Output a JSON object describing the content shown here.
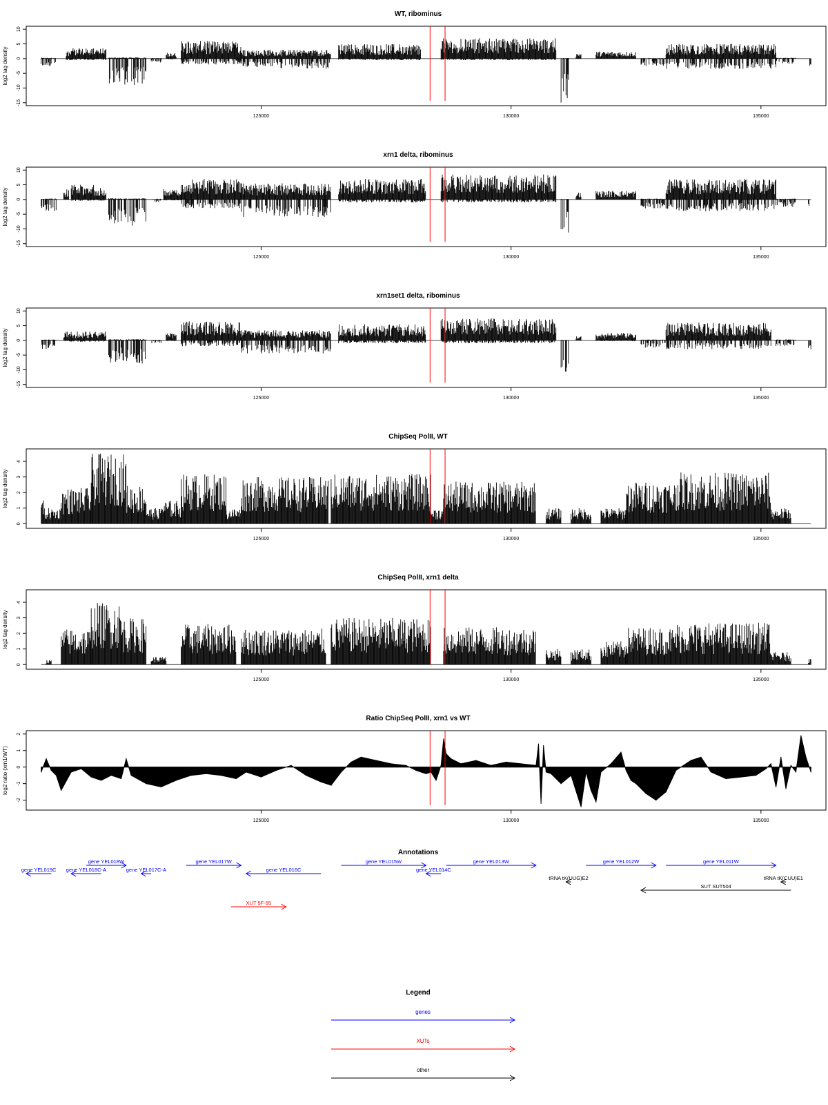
{
  "chart_data": [
    {
      "type": "bar",
      "title": "WT, ribominus",
      "ylabel": "log2 tag density",
      "xlabel": "",
      "xlim": [
        120300,
        136300
      ],
      "ylim": [
        -16,
        11
      ],
      "yticks": [
        -15,
        -10,
        -5,
        0,
        5,
        10
      ],
      "xticks": [
        125000,
        130000,
        135000
      ],
      "marker_lines": [
        128380,
        128680
      ],
      "profile": [
        {
          "start": 120600,
          "end": 120900,
          "pos": 0.3,
          "neg": -2.5
        },
        {
          "start": 121100,
          "end": 121900,
          "pos": 3.5,
          "neg": -0.5
        },
        {
          "start": 121950,
          "end": 122700,
          "pos": 0.4,
          "neg": -9
        },
        {
          "start": 122800,
          "end": 123000,
          "pos": 0.2,
          "neg": -1.5
        },
        {
          "start": 123100,
          "end": 123300,
          "pos": 2.0,
          "neg": -0.3
        },
        {
          "start": 123400,
          "end": 124600,
          "pos": 6.0,
          "neg": -2.0
        },
        {
          "start": 124600,
          "end": 126400,
          "pos": 3.0,
          "neg": -3.5
        },
        {
          "start": 126550,
          "end": 128200,
          "pos": 5.0,
          "neg": -0.5
        },
        {
          "start": 128600,
          "end": 130900,
          "pos": 7.0,
          "neg": -0.5
        },
        {
          "start": 131000,
          "end": 131150,
          "pos": 0.2,
          "neg": -15
        },
        {
          "start": 131300,
          "end": 131400,
          "pos": 2.0,
          "neg": 0
        },
        {
          "start": 131700,
          "end": 132500,
          "pos": 2.5,
          "neg": 0
        },
        {
          "start": 132600,
          "end": 133100,
          "pos": 0.2,
          "neg": -2.5
        },
        {
          "start": 133100,
          "end": 135300,
          "pos": 5.0,
          "neg": -3.5
        },
        {
          "start": 135300,
          "end": 135700,
          "pos": 0.3,
          "neg": -2.0
        },
        {
          "start": 135950,
          "end": 136000,
          "pos": 0.1,
          "neg": -2.5
        }
      ]
    },
    {
      "type": "bar",
      "title": "xrn1 delta, ribominus",
      "ylabel": "log2 tag density",
      "xlabel": "",
      "xlim": [
        120300,
        136300
      ],
      "ylim": [
        -16,
        11
      ],
      "yticks": [
        -15,
        -10,
        -5,
        0,
        5,
        10
      ],
      "xticks": [
        125000,
        130000,
        135000
      ],
      "marker_lines": [
        128380,
        128680
      ],
      "profile": [
        {
          "start": 120600,
          "end": 120900,
          "pos": 0.3,
          "neg": -4
        },
        {
          "start": 121050,
          "end": 121150,
          "pos": 3.5,
          "neg": 0
        },
        {
          "start": 121200,
          "end": 121900,
          "pos": 5.0,
          "neg": -0.5
        },
        {
          "start": 121950,
          "end": 122700,
          "pos": 0.4,
          "neg": -9
        },
        {
          "start": 122800,
          "end": 123000,
          "pos": 0.3,
          "neg": -1.0
        },
        {
          "start": 123050,
          "end": 123400,
          "pos": 3.5,
          "neg": -0.3
        },
        {
          "start": 123400,
          "end": 124600,
          "pos": 7.0,
          "neg": -3.0
        },
        {
          "start": 124600,
          "end": 126400,
          "pos": 5.5,
          "neg": -6.0
        },
        {
          "start": 126550,
          "end": 128300,
          "pos": 7.0,
          "neg": -1.0
        },
        {
          "start": 128600,
          "end": 130900,
          "pos": 8.5,
          "neg": -1.0
        },
        {
          "start": 131000,
          "end": 131150,
          "pos": 0.2,
          "neg": -12
        },
        {
          "start": 131300,
          "end": 131400,
          "pos": 2.5,
          "neg": 0
        },
        {
          "start": 131700,
          "end": 132500,
          "pos": 3.0,
          "neg": 0
        },
        {
          "start": 132600,
          "end": 133100,
          "pos": 0.3,
          "neg": -3.0
        },
        {
          "start": 133100,
          "end": 135300,
          "pos": 7.0,
          "neg": -4.0
        },
        {
          "start": 135300,
          "end": 135700,
          "pos": 0.3,
          "neg": -2.5
        },
        {
          "start": 135950,
          "end": 136000,
          "pos": 0.1,
          "neg": -2.5
        }
      ]
    },
    {
      "type": "bar",
      "title": "xrn1set1 delta, ribominus",
      "ylabel": "log2 tag density",
      "xlabel": "",
      "xlim": [
        120300,
        136300
      ],
      "ylim": [
        -16,
        11
      ],
      "yticks": [
        -15,
        -10,
        -5,
        0,
        5,
        10
      ],
      "xticks": [
        125000,
        130000,
        135000
      ],
      "marker_lines": [
        128380,
        128680
      ],
      "profile": [
        {
          "start": 120600,
          "end": 120900,
          "pos": 0.3,
          "neg": -3
        },
        {
          "start": 121050,
          "end": 121900,
          "pos": 3.0,
          "neg": -0.5
        },
        {
          "start": 121950,
          "end": 122700,
          "pos": 0.4,
          "neg": -8
        },
        {
          "start": 122800,
          "end": 123000,
          "pos": 0.2,
          "neg": -1.0
        },
        {
          "start": 123100,
          "end": 123300,
          "pos": 2.5,
          "neg": -0.3
        },
        {
          "start": 123400,
          "end": 124600,
          "pos": 6.5,
          "neg": -2.0
        },
        {
          "start": 124600,
          "end": 126400,
          "pos": 3.5,
          "neg": -4.5
        },
        {
          "start": 126550,
          "end": 128300,
          "pos": 5.5,
          "neg": -1.0
        },
        {
          "start": 128600,
          "end": 130900,
          "pos": 7.5,
          "neg": -1.0
        },
        {
          "start": 131000,
          "end": 131150,
          "pos": 0.2,
          "neg": -11
        },
        {
          "start": 131300,
          "end": 131400,
          "pos": 1.5,
          "neg": 0
        },
        {
          "start": 131700,
          "end": 132500,
          "pos": 2.5,
          "neg": -0.3
        },
        {
          "start": 132600,
          "end": 133100,
          "pos": 0.3,
          "neg": -2.5
        },
        {
          "start": 133100,
          "end": 135200,
          "pos": 6.0,
          "neg": -3.0
        },
        {
          "start": 135300,
          "end": 135700,
          "pos": 0.3,
          "neg": -2.0
        },
        {
          "start": 135950,
          "end": 136000,
          "pos": 0.1,
          "neg": -3.0
        }
      ]
    },
    {
      "type": "bar",
      "title": "ChipSeq PolII, WT",
      "ylabel": "log2 tag density",
      "xlabel": "",
      "xlim": [
        120300,
        136300
      ],
      "ylim": [
        -0.3,
        4.8
      ],
      "yticks": [
        0,
        1,
        2,
        3,
        4
      ],
      "xticks": [
        125000,
        130000,
        135000
      ],
      "marker_lines": [
        128380,
        128680
      ],
      "profile": [
        {
          "start": 120600,
          "end": 120650,
          "pos": 1.6
        },
        {
          "start": 120650,
          "end": 121000,
          "pos": 1.0
        },
        {
          "start": 121000,
          "end": 121600,
          "pos": 2.3
        },
        {
          "start": 121600,
          "end": 122300,
          "pos": 4.5
        },
        {
          "start": 122300,
          "end": 122700,
          "pos": 2.5
        },
        {
          "start": 122700,
          "end": 123000,
          "pos": 1.0
        },
        {
          "start": 123000,
          "end": 123400,
          "pos": 1.5
        },
        {
          "start": 123400,
          "end": 124300,
          "pos": 3.2
        },
        {
          "start": 124300,
          "end": 124600,
          "pos": 1.0
        },
        {
          "start": 124600,
          "end": 126350,
          "pos": 3.0
        },
        {
          "start": 126400,
          "end": 128400,
          "pos": 3.2
        },
        {
          "start": 128400,
          "end": 128650,
          "pos": 1.0
        },
        {
          "start": 128650,
          "end": 130500,
          "pos": 2.7
        },
        {
          "start": 130700,
          "end": 131000,
          "pos": 1.0
        },
        {
          "start": 131200,
          "end": 131600,
          "pos": 1.0
        },
        {
          "start": 131800,
          "end": 132300,
          "pos": 1.0
        },
        {
          "start": 132300,
          "end": 133300,
          "pos": 2.7
        },
        {
          "start": 133300,
          "end": 135200,
          "pos": 3.3
        },
        {
          "start": 135200,
          "end": 135600,
          "pos": 1.0
        }
      ]
    },
    {
      "type": "bar",
      "title": "ChipSeq PolII, xrn1 delta",
      "ylabel": "log2 tag density",
      "xlabel": "",
      "xlim": [
        120300,
        136300
      ],
      "ylim": [
        -0.3,
        4.8
      ],
      "yticks": [
        0,
        1,
        2,
        3,
        4
      ],
      "xticks": [
        125000,
        130000,
        135000
      ],
      "marker_lines": [
        128380,
        128680
      ],
      "profile": [
        {
          "start": 120700,
          "end": 120800,
          "pos": 0.3
        },
        {
          "start": 121000,
          "end": 121600,
          "pos": 2.3
        },
        {
          "start": 121600,
          "end": 122200,
          "pos": 4.0
        },
        {
          "start": 122200,
          "end": 122700,
          "pos": 3.0
        },
        {
          "start": 122800,
          "end": 123100,
          "pos": 0.5
        },
        {
          "start": 123400,
          "end": 124500,
          "pos": 2.6
        },
        {
          "start": 124600,
          "end": 126300,
          "pos": 2.3
        },
        {
          "start": 126400,
          "end": 128400,
          "pos": 3.0
        },
        {
          "start": 128650,
          "end": 130500,
          "pos": 2.4
        },
        {
          "start": 130700,
          "end": 131000,
          "pos": 1.0
        },
        {
          "start": 131200,
          "end": 131600,
          "pos": 1.0
        },
        {
          "start": 131800,
          "end": 132300,
          "pos": 1.5
        },
        {
          "start": 132300,
          "end": 133300,
          "pos": 2.4
        },
        {
          "start": 133300,
          "end": 135200,
          "pos": 2.7
        },
        {
          "start": 135200,
          "end": 135600,
          "pos": 0.8
        },
        {
          "start": 135950,
          "end": 136000,
          "pos": 0.4
        }
      ]
    },
    {
      "type": "area",
      "title": "Ratio ChipSeq PolII, xrn1 vs WT",
      "ylabel": "log2 ratio (xrn1/WT)",
      "xlabel": "",
      "xlim": [
        120300,
        136300
      ],
      "ylim": [
        -2.6,
        2.2
      ],
      "yticks": [
        -2,
        -1,
        0,
        1,
        2
      ],
      "xticks": [
        125000,
        130000,
        135000
      ],
      "marker_lines": [
        128380,
        128680
      ],
      "x": [
        120600,
        120700,
        120800,
        120900,
        121000,
        121200,
        121400,
        121600,
        121800,
        122000,
        122200,
        122300,
        122400,
        122700,
        123000,
        123300,
        123600,
        123900,
        124200,
        124500,
        124700,
        125000,
        125300,
        125600,
        125900,
        126200,
        126400,
        126600,
        126800,
        127000,
        127300,
        127600,
        127900,
        128100,
        128300,
        128400,
        128500,
        128600,
        128650,
        128700,
        128800,
        129000,
        129300,
        129600,
        129900,
        130200,
        130500,
        130550,
        130600,
        130650,
        130700,
        130800,
        131000,
        131200,
        131400,
        131500,
        131600,
        131700,
        131800,
        132000,
        132200,
        132300,
        132400,
        132500,
        132700,
        132900,
        133100,
        133300,
        133600,
        133800,
        134000,
        134300,
        134600,
        134900,
        135100,
        135200,
        135300,
        135400,
        135500,
        135600,
        135700,
        135800,
        135900,
        136000
      ],
      "y": [
        -0.3,
        0.5,
        -0.2,
        -0.5,
        -1.4,
        -0.3,
        -0.1,
        -0.6,
        -0.8,
        -0.5,
        -0.7,
        0.5,
        -0.5,
        -1.0,
        -1.2,
        -0.8,
        -0.5,
        -0.4,
        -0.5,
        -0.7,
        -0.3,
        -0.6,
        -0.2,
        0.1,
        -0.5,
        -0.9,
        -1.1,
        -0.3,
        0.3,
        0.6,
        0.4,
        0.2,
        0.1,
        -0.2,
        -0.4,
        -0.3,
        -0.8,
        0.1,
        1.7,
        0.8,
        0.5,
        0.2,
        0.4,
        0.1,
        0.3,
        0.2,
        0.1,
        1.4,
        -2.2,
        1.3,
        -0.3,
        -0.4,
        -1.0,
        -0.5,
        -2.4,
        -0.3,
        -1.4,
        -2.1,
        -0.3,
        0.2,
        0.9,
        -0.2,
        -0.8,
        -1.0,
        -1.6,
        -2.0,
        -1.5,
        -0.2,
        0.4,
        0.6,
        -0.3,
        -0.7,
        -0.6,
        -0.5,
        -0.1,
        0.2,
        -1.2,
        0.6,
        -1.3,
        0.1,
        -0.3,
        1.9,
        0.6,
        -0.3
      ]
    }
  ],
  "annotations": {
    "title": "Annotations",
    "features": [
      {
        "label": "gene YEL019C",
        "strand": "-",
        "start": 120300,
        "end": 120800,
        "row": 2,
        "color": "#0000ff"
      },
      {
        "label": "gene YEL018C-A",
        "strand": "-",
        "start": 121200,
        "end": 121800,
        "row": 2,
        "color": "#0000ff"
      },
      {
        "label": "gene YEL018W",
        "strand": "+",
        "start": 121500,
        "end": 122300,
        "row": 1,
        "color": "#0000ff"
      },
      {
        "label": "gene YEL017C-A",
        "strand": "-",
        "start": 122600,
        "end": 122800,
        "row": 2,
        "color": "#0000ff"
      },
      {
        "label": "gene YEL017W",
        "strand": "+",
        "start": 123500,
        "end": 124600,
        "row": 1,
        "color": "#0000ff"
      },
      {
        "label": "gene YEL016C",
        "strand": "-",
        "start": 124700,
        "end": 126200,
        "row": 2,
        "color": "#0000ff"
      },
      {
        "label": "gene YEL015W",
        "strand": "+",
        "start": 126600,
        "end": 128300,
        "row": 1,
        "color": "#0000ff"
      },
      {
        "label": "gene YEL014C",
        "strand": "-",
        "start": 128300,
        "end": 128600,
        "row": 2,
        "color": "#0000ff"
      },
      {
        "label": "gene YEL013W",
        "strand": "+",
        "start": 128700,
        "end": 130500,
        "row": 1,
        "color": "#0000ff"
      },
      {
        "label": "gene YEL012W",
        "strand": "+",
        "start": 131500,
        "end": 132900,
        "row": 1,
        "color": "#0000ff"
      },
      {
        "label": "gene YEL011W",
        "strand": "+",
        "start": 133100,
        "end": 135300,
        "row": 1,
        "color": "#0000ff"
      },
      {
        "label": "tRNA tK(UUG)E2",
        "strand": "-",
        "start": 131100,
        "end": 131200,
        "row": 3,
        "color": "#000000"
      },
      {
        "label": "tRNA tK(CUU)E1",
        "strand": "-",
        "start": 135400,
        "end": 135500,
        "row": 3,
        "color": "#000000"
      },
      {
        "label": "SUT SUT504",
        "strand": "-",
        "start": 132600,
        "end": 135600,
        "row": 4,
        "color": "#000000"
      },
      {
        "label": "XUT 5F-55",
        "strand": "+",
        "start": 124400,
        "end": 125500,
        "row": 6,
        "color": "#ff0000"
      }
    ]
  },
  "legend": {
    "title": "Legend",
    "items": [
      {
        "label": "genes",
        "color": "#0000ff"
      },
      {
        "label": "XUTs",
        "color": "#ff0000"
      },
      {
        "label": "other",
        "color": "#000000"
      }
    ]
  }
}
